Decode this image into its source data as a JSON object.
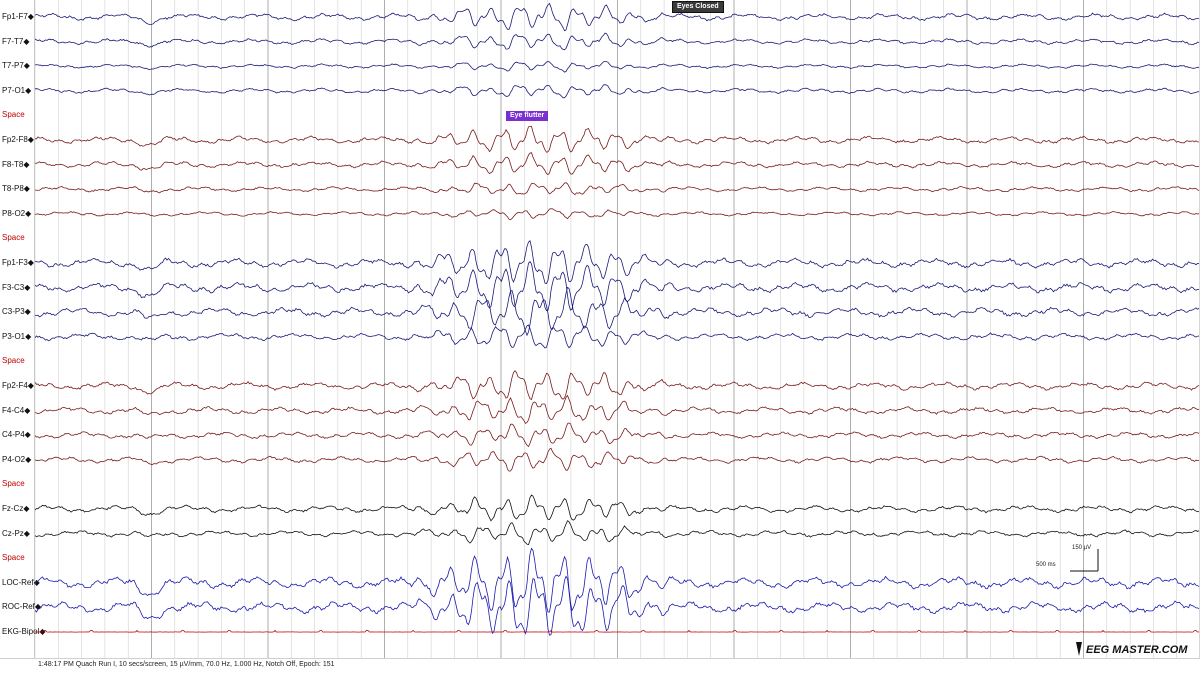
{
  "channels": [
    {
      "label": "Fp1-F7",
      "type": "signal",
      "color": "#1a1a7a",
      "amp": 1.0
    },
    {
      "label": "F7-T7",
      "type": "signal",
      "color": "#1a1a7a",
      "amp": 0.8
    },
    {
      "label": "T7-P7",
      "type": "signal",
      "color": "#1a1a7a",
      "amp": 0.6
    },
    {
      "label": "P7-O1",
      "type": "signal",
      "color": "#1a1a7a",
      "amp": 0.7
    },
    {
      "label": "Space",
      "type": "space"
    },
    {
      "label": "Fp2-F8",
      "type": "signal",
      "color": "#7a1a1a",
      "amp": 1.0
    },
    {
      "label": "F8-T8",
      "type": "signal",
      "color": "#7a1a1a",
      "amp": 0.9
    },
    {
      "label": "T8-P8",
      "type": "signal",
      "color": "#7a1a1a",
      "amp": 0.7
    },
    {
      "label": "P8-O2",
      "type": "signal",
      "color": "#7a1a1a",
      "amp": 0.6
    },
    {
      "label": "Space",
      "type": "space"
    },
    {
      "label": "Fp1-F3",
      "type": "signal",
      "color": "#1a1a7a",
      "amp": 1.3
    },
    {
      "label": "F3-C3",
      "type": "signal",
      "color": "#1a1a7a",
      "amp": 1.4
    },
    {
      "label": "C3-P3",
      "type": "signal",
      "color": "#1a1a7a",
      "amp": 1.3
    },
    {
      "label": "P3-O1",
      "type": "signal",
      "color": "#1a1a7a",
      "amp": 1.0
    },
    {
      "label": "Space",
      "type": "space"
    },
    {
      "label": "Fp2-F4",
      "type": "signal",
      "color": "#7a1a1a",
      "amp": 1.1
    },
    {
      "label": "F4-C4",
      "type": "signal",
      "color": "#7a1a1a",
      "amp": 1.0
    },
    {
      "label": "C4-P4",
      "type": "signal",
      "color": "#7a1a1a",
      "amp": 0.9
    },
    {
      "label": "P4-O2",
      "type": "signal",
      "color": "#7a1a1a",
      "amp": 0.9
    },
    {
      "label": "Space",
      "type": "space"
    },
    {
      "label": "Fz-Cz",
      "type": "signal",
      "color": "#111111",
      "amp": 1.0
    },
    {
      "label": "Cz-Pz",
      "type": "signal",
      "color": "#111111",
      "amp": 0.9
    },
    {
      "label": "Space",
      "type": "space"
    },
    {
      "label": "LOC-Ref",
      "type": "signal",
      "color": "#1a1ab0",
      "amp": 1.6
    },
    {
      "label": "ROC-Ref",
      "type": "signal",
      "color": "#1a1ab0",
      "amp": 1.6
    },
    {
      "label": "EKG-Bipol",
      "type": "ekg",
      "color": "#c00000",
      "amp": 0.3
    }
  ],
  "markers": {
    "eyes_closed": "Eyes Closed",
    "eye_flutter": "Eye flutter"
  },
  "scale_bar": {
    "amplitude": "150 µV",
    "time": "500 ms"
  },
  "status_bar": "1:48:17 PM Quach Run I, 10 secs/screen, 15 µV/mm, 70.0 Hz, 1.000 Hz, Notch Off, Epoch: 151",
  "logo": {
    "text": "EEG MASTER.COM",
    "color": "#111111"
  },
  "colors": {
    "grid": "#c8c8c8",
    "left_blue": "#1a1a7a",
    "right_red": "#7a1a1a",
    "midline": "#111111",
    "eye_lead": "#1a1ab0",
    "ekg": "#c00000"
  }
}
